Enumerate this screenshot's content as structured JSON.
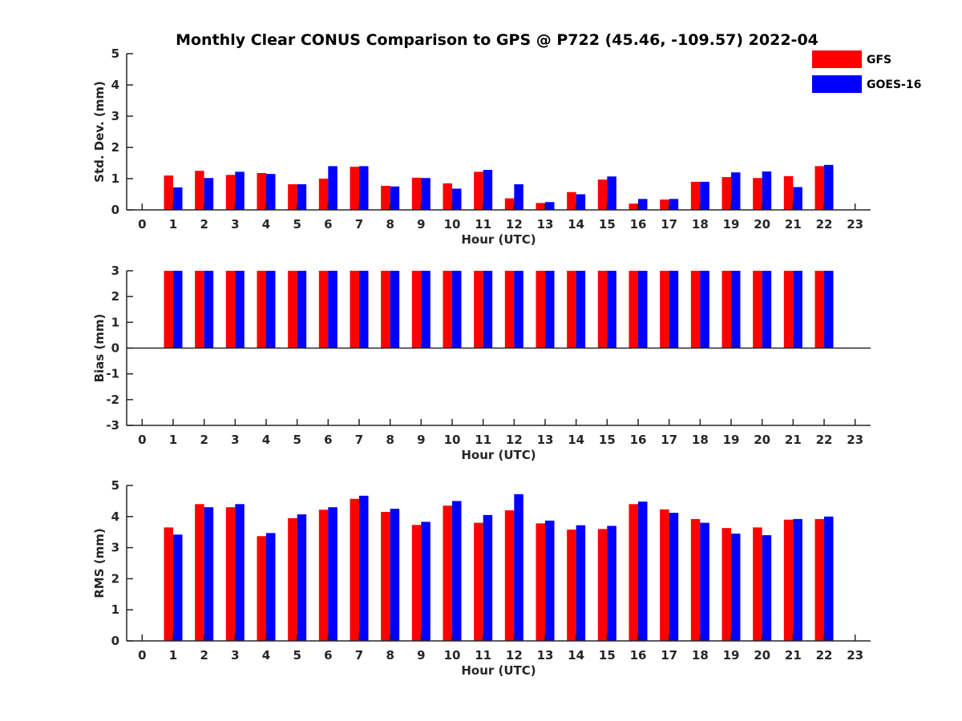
{
  "title": "Monthly Clear CONUS Comparison to GPS @ P722 (45.46, -109.57) 2022-04",
  "legend": [
    {
      "name": "GFS",
      "color": "#ff0000"
    },
    {
      "name": "GOES-16",
      "color": "#0000ff"
    }
  ],
  "chart_data": [
    {
      "type": "bar",
      "xlabel": "Hour (UTC)",
      "ylabel": "Std. Dev. (mm)",
      "xlim": [
        -0.5,
        23.5
      ],
      "ylim": [
        0,
        5
      ],
      "x_ticks": [
        0,
        1,
        2,
        3,
        4,
        5,
        6,
        7,
        8,
        9,
        10,
        11,
        12,
        13,
        14,
        15,
        16,
        17,
        18,
        19,
        20,
        21,
        22,
        23
      ],
      "y_ticks": [
        0,
        1,
        2,
        3,
        4,
        5
      ],
      "categories": [
        1,
        2,
        3,
        4,
        5,
        6,
        7,
        8,
        9,
        10,
        11,
        12,
        13,
        14,
        15,
        16,
        17,
        18,
        19,
        20,
        21,
        22
      ],
      "series": [
        {
          "name": "GFS",
          "color": "#ff0000",
          "values": [
            1.1,
            1.25,
            1.12,
            1.18,
            0.82,
            1.0,
            1.38,
            0.77,
            1.03,
            0.85,
            1.22,
            0.37,
            0.22,
            0.57,
            0.97,
            0.2,
            0.33,
            0.9,
            1.05,
            1.02,
            1.08,
            1.4
          ]
        },
        {
          "name": "GOES-16",
          "color": "#0000ff",
          "values": [
            0.72,
            1.02,
            1.22,
            1.15,
            0.82,
            1.4,
            1.4,
            0.75,
            1.02,
            0.68,
            1.28,
            0.82,
            0.25,
            0.5,
            1.07,
            0.35,
            0.35,
            0.9,
            1.2,
            1.23,
            0.73,
            1.44
          ]
        }
      ],
      "legend": "top-right"
    },
    {
      "type": "bar",
      "xlabel": "Hour (UTC)",
      "ylabel": "Bias (mm)",
      "xlim": [
        -0.5,
        23.5
      ],
      "ylim": [
        -3,
        3
      ],
      "x_ticks": [
        0,
        1,
        2,
        3,
        4,
        5,
        6,
        7,
        8,
        9,
        10,
        11,
        12,
        13,
        14,
        15,
        16,
        17,
        18,
        19,
        20,
        21,
        22,
        23
      ],
      "y_ticks": [
        -3,
        -2,
        -1,
        0,
        1,
        2,
        3
      ],
      "categories": [
        1,
        2,
        3,
        4,
        5,
        6,
        7,
        8,
        9,
        10,
        11,
        12,
        13,
        14,
        15,
        16,
        17,
        18,
        19,
        20,
        21,
        22
      ],
      "series": [
        {
          "name": "GFS",
          "color": "#ff0000",
          "values": [
            3,
            3,
            3,
            3,
            3,
            3,
            3,
            3,
            3,
            3,
            3,
            3,
            3,
            3,
            3,
            3,
            3,
            3,
            3,
            3,
            3,
            3
          ]
        },
        {
          "name": "GOES-16",
          "color": "#0000ff",
          "values": [
            3,
            3,
            3,
            3,
            3,
            3,
            3,
            3,
            3,
            3,
            3,
            3,
            3,
            3,
            3,
            3,
            3,
            3,
            3,
            3,
            3,
            3
          ]
        }
      ]
    },
    {
      "type": "bar",
      "xlabel": "Hour (UTC)",
      "ylabel": "RMS (mm)",
      "xlim": [
        -0.5,
        23.5
      ],
      "ylim": [
        0,
        5
      ],
      "x_ticks": [
        0,
        1,
        2,
        3,
        4,
        5,
        6,
        7,
        8,
        9,
        10,
        11,
        12,
        13,
        14,
        15,
        16,
        17,
        18,
        19,
        20,
        21,
        22,
        23
      ],
      "y_ticks": [
        0,
        1,
        2,
        3,
        4,
        5
      ],
      "categories": [
        1,
        2,
        3,
        4,
        5,
        6,
        7,
        8,
        9,
        10,
        11,
        12,
        13,
        14,
        15,
        16,
        17,
        18,
        19,
        20,
        21,
        22
      ],
      "series": [
        {
          "name": "GFS",
          "color": "#ff0000",
          "values": [
            3.65,
            4.4,
            4.3,
            3.37,
            3.95,
            4.22,
            4.57,
            4.15,
            3.73,
            4.35,
            3.8,
            4.2,
            3.78,
            3.58,
            3.6,
            4.4,
            4.23,
            3.92,
            3.63,
            3.65,
            3.9,
            3.92
          ]
        },
        {
          "name": "GOES-16",
          "color": "#0000ff",
          "values": [
            3.42,
            4.3,
            4.4,
            3.47,
            4.07,
            4.3,
            4.67,
            4.25,
            3.83,
            4.5,
            4.05,
            4.72,
            3.87,
            3.72,
            3.7,
            4.48,
            4.12,
            3.8,
            3.45,
            3.4,
            3.92,
            4.0
          ]
        }
      ]
    }
  ]
}
